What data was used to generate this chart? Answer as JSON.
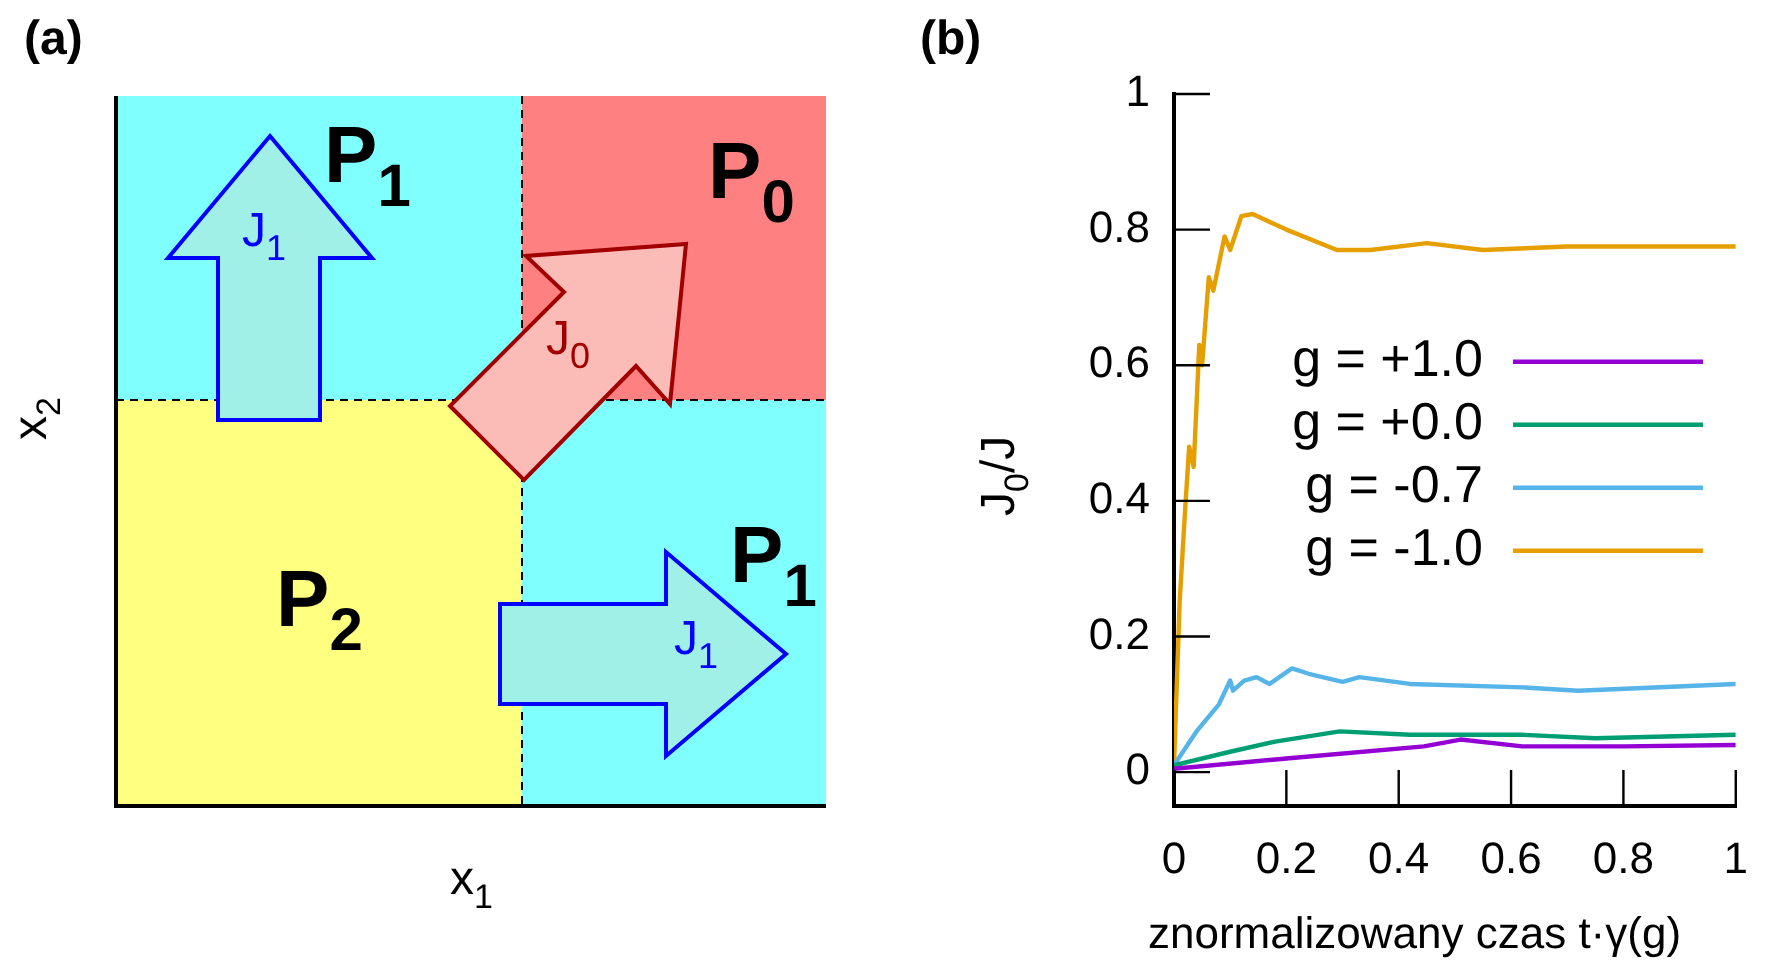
{
  "chart_data": [
    {
      "type": "other",
      "title": "(a)",
      "xlabel": "x$_{1}$",
      "ylabel": "x$_{2}$",
      "annotations": [
        "P$_{1}$",
        "P$_{0}$",
        "P$_{2}$",
        "P$_{1}$",
        "J$_{1}$",
        "J$_{0}$",
        "J$_{1}$"
      ]
    },
    {
      "type": "line",
      "title": "(b)",
      "xlabel": "znormalizowany czas t·γ(g)",
      "ylabel": "J$_{0}$/J",
      "xlim": [
        0,
        1
      ],
      "xticks": [
        0,
        0.2,
        0.4,
        0.6,
        0.8,
        1
      ],
      "ylim": [
        -0.05,
        1
      ],
      "yticks": [
        0,
        0.2,
        0.4,
        0.6,
        0.8,
        1
      ],
      "grid": false,
      "legend": "right",
      "marker": "none",
      "line_style": "solid",
      "series": [
        {
          "name": "g = +1.0",
          "color": "#9400d3",
          "x": [
            0,
            0.2,
            0.445,
            0.51,
            0.62,
            0.8,
            1
          ],
          "values": [
            0.005,
            0.02,
            0.038,
            0.048,
            0.038,
            0.038,
            0.04
          ]
        },
        {
          "name": "g = +0.0",
          "color": "#009e73",
          "x": [
            0,
            0.1,
            0.18,
            0.295,
            0.42,
            0.62,
            0.75,
            1
          ],
          "values": [
            0.01,
            0.03,
            0.045,
            0.06,
            0.055,
            0.055,
            0.05,
            0.055
          ]
        },
        {
          "name": "g = -0.7",
          "color": "#56b4e9",
          "x": [
            0,
            0.04,
            0.08,
            0.1,
            0.105,
            0.125,
            0.147,
            0.17,
            0.21,
            0.24,
            0.3,
            0.33,
            0.42,
            0.62,
            0.72,
            1
          ],
          "values": [
            0.01,
            0.06,
            0.1,
            0.135,
            0.12,
            0.135,
            0.14,
            0.13,
            0.153,
            0.145,
            0.133,
            0.14,
            0.13,
            0.125,
            0.12,
            0.13
          ]
        },
        {
          "name": "g = -1.0",
          "color": "#e69f00",
          "x": [
            0,
            0.01,
            0.02,
            0.027,
            0.035,
            0.045,
            0.05,
            0.062,
            0.07,
            0.09,
            0.1,
            0.12,
            0.14,
            0.2,
            0.29,
            0.35,
            0.45,
            0.55,
            0.7,
            1
          ],
          "values": [
            0.01,
            0.25,
            0.39,
            0.48,
            0.45,
            0.63,
            0.6,
            0.73,
            0.71,
            0.79,
            0.77,
            0.82,
            0.823,
            0.8,
            0.77,
            0.77,
            0.78,
            0.77,
            0.775,
            0.775
          ]
        }
      ]
    }
  ]
}
